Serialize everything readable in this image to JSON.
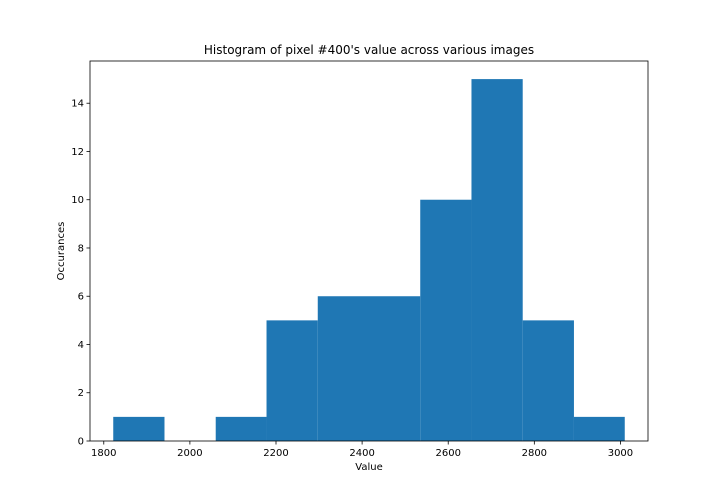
{
  "chart_data": {
    "type": "bar",
    "title": "Histogram of pixel #400's value across various images",
    "xlabel": "Value",
    "ylabel": "Occurances",
    "bin_edges": [
      1822,
      1941,
      2060,
      2178,
      2297,
      2416,
      2535,
      2654,
      2773,
      2892,
      3010
    ],
    "values": [
      1,
      0,
      1,
      5,
      6,
      6,
      10,
      15,
      5,
      1
    ],
    "xlim": [
      1768,
      3064
    ],
    "ylim": [
      0,
      15.75
    ],
    "xticks": [
      1800,
      2000,
      2200,
      2400,
      2600,
      2800,
      3000
    ],
    "yticks": [
      0,
      2,
      4,
      6,
      8,
      10,
      12,
      14
    ],
    "bar_color": "#1f77b4",
    "grid": false
  }
}
